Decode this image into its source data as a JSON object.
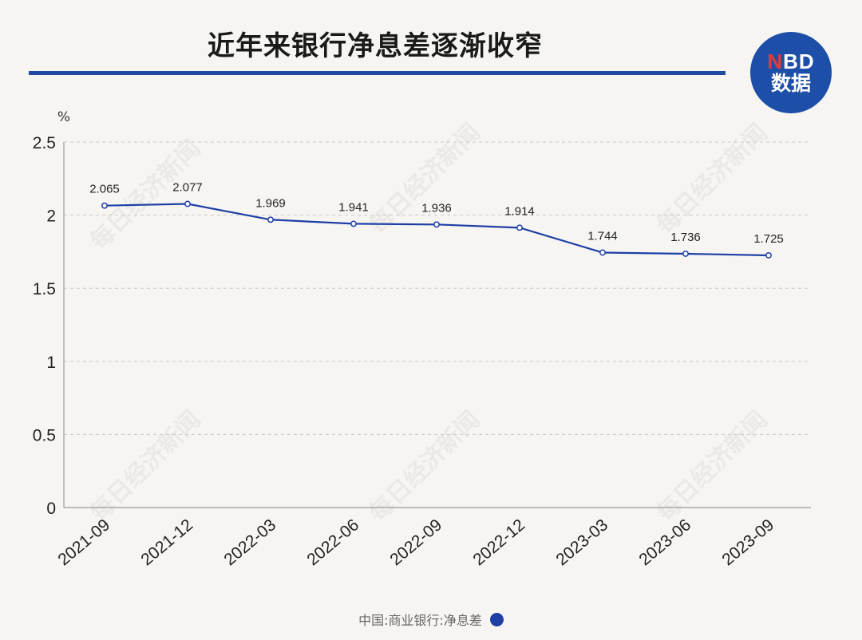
{
  "title": "近年来银行净息差逐渐收窄",
  "logo": {
    "n": "N",
    "bd": "BD",
    "line2": "数据"
  },
  "watermark": "每日经济新闻",
  "colors": {
    "line": "#1e3fa6",
    "accent": "#1e4aa0",
    "background": "#f7f5f1"
  },
  "chart_data": {
    "type": "line",
    "unit_label": "%",
    "categories": [
      "2021-09",
      "2021-12",
      "2022-03",
      "2022-06",
      "2022-09",
      "2022-12",
      "2023-03",
      "2023-06",
      "2023-09"
    ],
    "series": [
      {
        "name": "中国:商业银行:净息差",
        "values": [
          2.065,
          2.077,
          1.969,
          1.941,
          1.936,
          1.914,
          1.744,
          1.736,
          1.725
        ]
      }
    ],
    "data_labels": [
      "2.065",
      "2.077",
      "1.969",
      "1.941",
      "1.936",
      "1.914",
      "1.744",
      "1.736",
      "1.725"
    ],
    "yticks": [
      0,
      0.5,
      1,
      1.5,
      2,
      2.5
    ],
    "ytick_labels": [
      "0",
      "0.5",
      "1",
      "1.5",
      "2",
      "2.5"
    ],
    "ylim": [
      0,
      2.5
    ],
    "grid": true,
    "legend_position": "bottom"
  }
}
